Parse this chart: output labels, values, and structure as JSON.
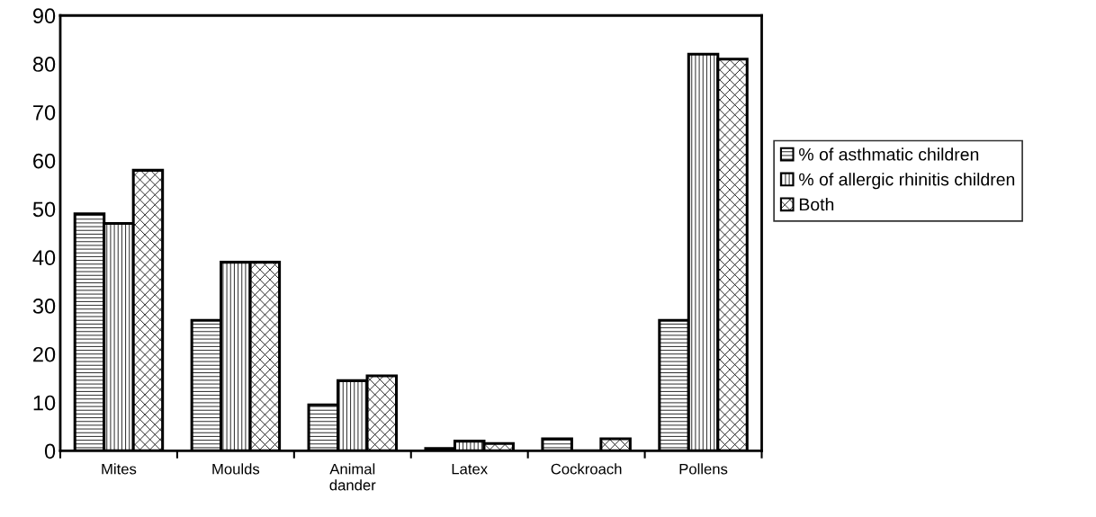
{
  "chart_data": {
    "type": "bar",
    "categories": [
      "Mites",
      "Moulds",
      "Animal\ndander",
      "Latex",
      "Cockroach",
      "Pollens"
    ],
    "series": [
      {
        "name": "% of asthmatic children",
        "color": "#000000",
        "values": [
          49,
          27,
          9.5,
          0.5,
          2.5,
          27
        ]
      },
      {
        "name": "% of allergic rhinitis children",
        "color": "#000000",
        "values": [
          47,
          39,
          14.5,
          2,
          0,
          82
        ]
      },
      {
        "name": "Both",
        "color": "#000000",
        "values": [
          58,
          39,
          15.5,
          1.5,
          2.5,
          81
        ]
      }
    ],
    "ylim": [
      0,
      90
    ],
    "yticks": [
      0,
      10,
      20,
      30,
      40,
      50,
      60,
      70,
      80,
      90
    ],
    "grid": false,
    "legend": "right"
  }
}
